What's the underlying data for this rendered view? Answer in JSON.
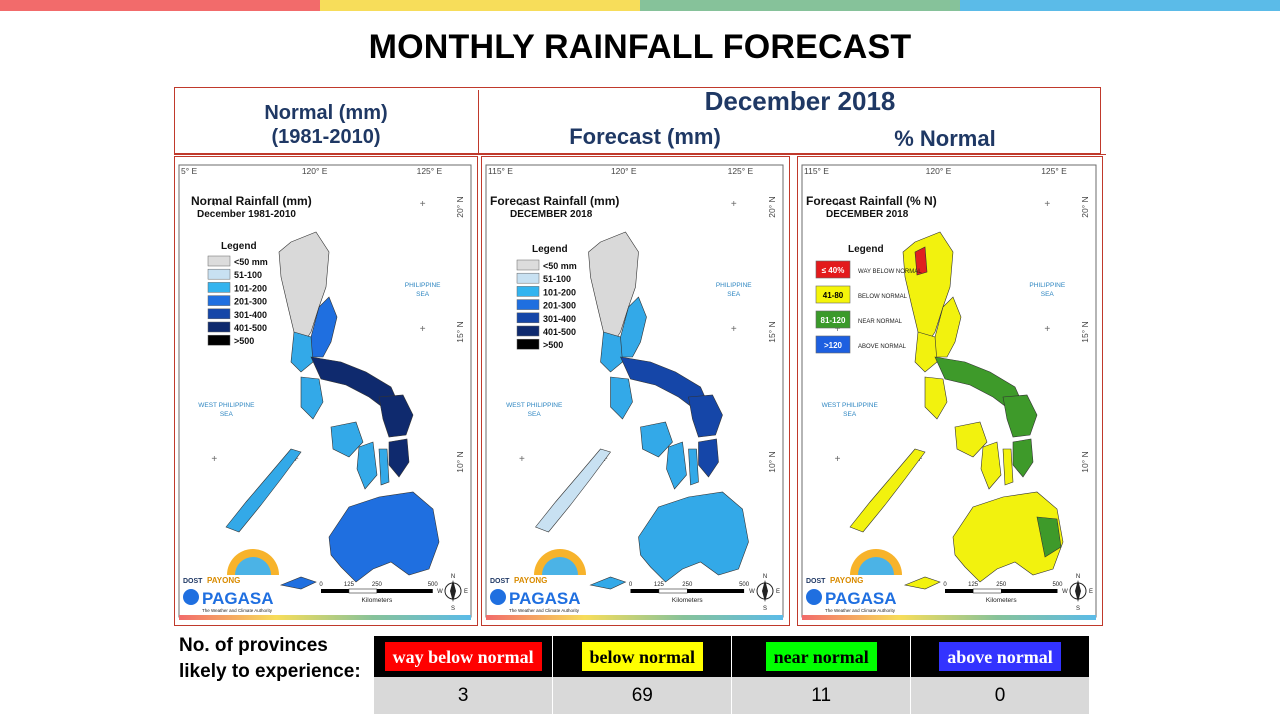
{
  "colors": {
    "top_bar": [
      "#f26b6b",
      "#f7dd5a",
      "#86c29a",
      "#5bbbe8"
    ],
    "header_text": "#1f3864",
    "frame": "#c0392b",
    "land_base": "#33a9e8",
    "land_north": "#c8dff0",
    "land_dark": "#123a8c",
    "land_yellow": "#f2f20e",
    "land_green": "#3e9a2a",
    "land_red": "#e02020"
  },
  "title": "MONTHLY RAINFALL FORECAST",
  "header": {
    "normal_line1": "Normal (mm)",
    "normal_line2": "(1981-2010)",
    "month": "December 2018",
    "forecast": "Forecast (mm)",
    "percent": "% Normal"
  },
  "maps": {
    "shared": {
      "lon_labels_a": [
        "5° E",
        "120° E",
        "125° E"
      ],
      "lon_labels_b": [
        "115° E",
        "120° E",
        "125° E"
      ],
      "lat_labels": [
        "20° N",
        "15° N",
        "10° N"
      ],
      "philippine_sea": [
        "PHILIPPINE",
        "SEA"
      ],
      "west_philippine_sea": [
        "WEST PHILIPPINE",
        "SEA"
      ],
      "scale_ticks": [
        "0",
        "125",
        "250",
        "500"
      ],
      "scale_unit": "Kilometers",
      "logo_dost": "DOST",
      "logo_payong": "PAYONG",
      "logo_pagasa": "PAGASA",
      "logo_tagline": "The Weather and Climate Authority",
      "compass_n": "N",
      "compass_s": "S",
      "compass_w": "W",
      "compass_e": "E"
    },
    "normal": {
      "title": "Normal Rainfall (mm)",
      "subtitle": "December 1981-2010",
      "legend_title": "Legend",
      "legend": [
        {
          "label": "<50 mm",
          "color": "#dcdcdc"
        },
        {
          "label": "51-100",
          "color": "#c8e1f2"
        },
        {
          "label": "101-200",
          "color": "#33b4ef"
        },
        {
          "label": "201-300",
          "color": "#1f6fe0"
        },
        {
          "label": "301-400",
          "color": "#1546a8"
        },
        {
          "label": "401-500",
          "color": "#0f2a6e"
        },
        {
          "label": ">500",
          "color": "#000000"
        }
      ]
    },
    "forecast": {
      "title": "Forecast Rainfall (mm)",
      "subtitle": "DECEMBER 2018",
      "legend_title": "Legend",
      "legend": [
        {
          "label": "<50 mm",
          "color": "#dcdcdc"
        },
        {
          "label": "51-100",
          "color": "#c8e1f2"
        },
        {
          "label": "101-200",
          "color": "#33b4ef"
        },
        {
          "label": "201-300",
          "color": "#1f6fe0"
        },
        {
          "label": "301-400",
          "color": "#1546a8"
        },
        {
          "label": "401-500",
          "color": "#0f2a6e"
        },
        {
          "label": ">500",
          "color": "#000000"
        }
      ]
    },
    "percent": {
      "title": "Forecast Rainfall (% N)",
      "subtitle": "DECEMBER 2018",
      "legend_title": "Legend",
      "legend": [
        {
          "box": "≤ 40%",
          "label": "WAY BELOW NORMAL",
          "color": "#e31a1c",
          "text_color": "#ffffff"
        },
        {
          "box": "41-80",
          "label": "BELOW NORMAL",
          "color": "#f5f50a",
          "text_color": "#000000"
        },
        {
          "box": "81-120",
          "label": "NEAR NORMAL",
          "color": "#3a9a2a",
          "text_color": "#ffffff"
        },
        {
          "box": ">120",
          "label": "ABOVE NORMAL",
          "color": "#1d5fe0",
          "text_color": "#ffffff"
        }
      ]
    }
  },
  "provinces_label": "No. of provinces likely to experience:",
  "summary": [
    {
      "label": "way below normal",
      "count": "3",
      "bg": "#ff0000",
      "fg": "#ffffff"
    },
    {
      "label": "below normal",
      "count": "69",
      "bg": "#ffff00",
      "fg": "#000000"
    },
    {
      "label": "near normal",
      "count": "11",
      "bg": "#00ff00",
      "fg": "#000000"
    },
    {
      "label": "above normal",
      "count": "0",
      "bg": "#3333ff",
      "fg": "#ffffff"
    }
  ]
}
